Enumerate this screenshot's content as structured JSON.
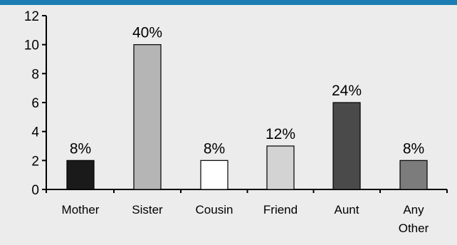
{
  "chart_data": {
    "type": "bar",
    "title": "",
    "xlabel": "",
    "ylabel": "",
    "ylim": [
      0,
      12
    ],
    "yticks": [
      0,
      2,
      4,
      6,
      8,
      10,
      12
    ],
    "grid": false,
    "legend": "none",
    "categories": [
      "Mother",
      "Sister",
      "Cousin",
      "Friend",
      "Aunt",
      "Any Other"
    ],
    "category_lines": [
      [
        "Mother"
      ],
      [
        "Sister"
      ],
      [
        "Cousin"
      ],
      [
        "Friend"
      ],
      [
        "Aunt"
      ],
      [
        "Any",
        "Other"
      ]
    ],
    "values": [
      2,
      10,
      2,
      3,
      6,
      2
    ],
    "data_labels": [
      "8%",
      "40%",
      "8%",
      "12%",
      "24%",
      "8%"
    ],
    "bar_fills": [
      "#1a1a1a",
      "#b5b5b5",
      "#ffffff",
      "#d3d3d3",
      "#4a4a4a",
      "#7c7c7c"
    ]
  },
  "colors": {
    "accent": "#1b7db3",
    "background": "#ececec",
    "axis": "#000000"
  }
}
